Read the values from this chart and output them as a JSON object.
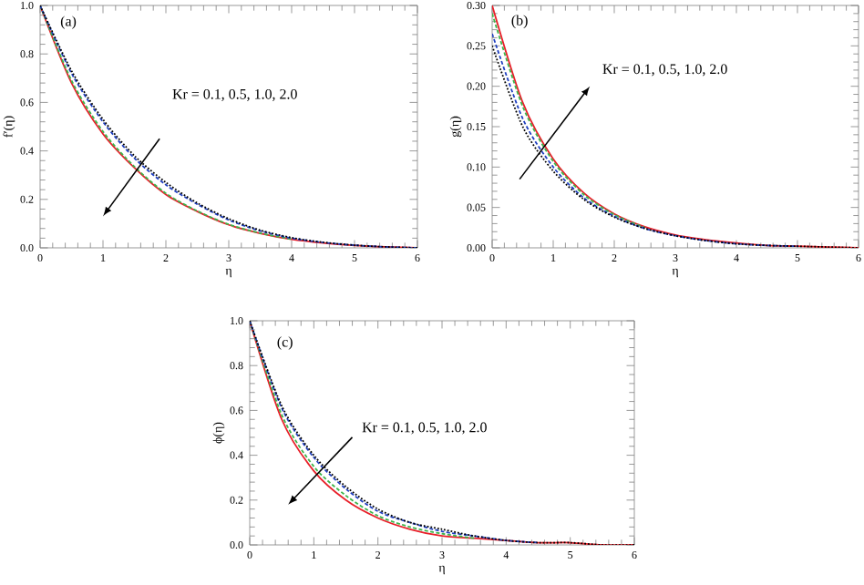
{
  "chart_data": [
    {
      "type": "line",
      "xlabel": "η",
      "ylabel": "f′(η)",
      "annotations": [
        "(a)",
        "Kr = 0.1, 0.5, 1.0, 2.0"
      ],
      "x": [
        0,
        0.5,
        1,
        1.5,
        2,
        2.5,
        3,
        3.5,
        4,
        4.5,
        5,
        5.5,
        6
      ],
      "xlim": [
        0,
        6
      ],
      "ylim": [
        0,
        1
      ],
      "xticks": [
        0,
        1,
        2,
        3,
        4,
        5,
        6
      ],
      "yticks": [
        {
          "value": 0,
          "label": "0.0"
        },
        0.2,
        0.4,
        0.6,
        0.8,
        {
          "value": 1,
          "label": "1.0"
        }
      ],
      "grid": false,
      "series": [
        {
          "color": "#000000",
          "line_style": "dotted",
          "values": [
            1,
            0.73,
            0.53,
            0.38,
            0.27,
            0.185,
            0.12,
            0.073,
            0.042,
            0.023,
            0.011,
            0.004,
            0
          ]
        },
        {
          "color": "#1f3fbf",
          "line_style": "dashed",
          "values": [
            1,
            0.72,
            0.52,
            0.37,
            0.26,
            0.18,
            0.115,
            0.07,
            0.04,
            0.022,
            0.011,
            0.004,
            0
          ]
        },
        {
          "color": "#3cb44b",
          "line_style": "dashed",
          "values": [
            1,
            0.69,
            0.48,
            0.335,
            0.225,
            0.152,
            0.097,
            0.061,
            0.036,
            null,
            null,
            null,
            null
          ]
        },
        {
          "color": "#e8202a",
          "line_style": "solid",
          "values": [
            1,
            0.68,
            0.47,
            0.33,
            0.22,
            0.15,
            0.095,
            0.06,
            0.035,
            0.02,
            0.01,
            0.004,
            0
          ]
        }
      ]
    },
    {
      "type": "line",
      "xlabel": "η",
      "ylabel": "g(η)",
      "annotations": [
        "(b)",
        "Kr = 0.1, 0.5, 1.0, 2.0"
      ],
      "x": [
        0,
        0.5,
        1,
        1.5,
        2,
        2.5,
        3,
        3.5,
        4,
        4.5,
        5,
        5.5,
        6
      ],
      "xlim": [
        0,
        6
      ],
      "ylim": [
        0,
        0.3
      ],
      "xticks": [
        0,
        1,
        2,
        3,
        4,
        5,
        6
      ],
      "yticks": [
        {
          "value": 0,
          "label": "0.00"
        },
        0.05,
        {
          "value": 0.1,
          "label": "0.10"
        },
        0.15,
        {
          "value": 0.2,
          "label": "0.20"
        },
        0.25,
        {
          "value": 0.3,
          "label": "0.30"
        }
      ],
      "grid": false,
      "series": [
        {
          "color": "#000000",
          "line_style": "dotted",
          "values": [
            0.25,
            0.15,
            0.095,
            0.06,
            0.038,
            0.024,
            0.015,
            0.009,
            0.005,
            0.003,
            0.002,
            0.001,
            0
          ]
        },
        {
          "color": "#1f3fbf",
          "line_style": "dashed",
          "values": [
            0.265,
            0.16,
            0.1,
            0.062,
            0.039,
            0.024,
            0.015,
            0.009,
            0.005,
            0.003,
            0.002,
            null,
            null
          ]
        },
        {
          "color": "#3cb44b",
          "line_style": "dashed",
          "values": [
            0.29,
            0.175,
            0.107,
            0.066,
            0.041,
            0.025,
            null,
            null,
            null,
            null,
            null,
            null,
            null
          ]
        },
        {
          "color": "#e8202a",
          "line_style": "solid",
          "values": [
            0.3,
            0.18,
            0.11,
            0.068,
            0.042,
            0.026,
            0.016,
            0.01,
            0.006,
            0.003,
            0.002,
            0.001,
            0
          ]
        }
      ]
    },
    {
      "type": "line",
      "xlabel": "η",
      "ylabel": "ϕ(η)",
      "annotations": [
        "(c)",
        "Kr = 0.1, 0.5, 1.0, 2.0"
      ],
      "x": [
        0,
        0.5,
        1,
        1.5,
        2,
        2.5,
        3,
        3.5,
        4,
        4.5,
        5,
        5.5,
        6
      ],
      "xlim": [
        0,
        6
      ],
      "ylim": [
        0,
        1
      ],
      "xticks": [
        0,
        1,
        2,
        3,
        4,
        5,
        6
      ],
      "yticks": [
        {
          "value": 0,
          "label": "0.0"
        },
        0.2,
        0.4,
        0.6,
        0.8,
        {
          "value": 1,
          "label": "1.0"
        }
      ],
      "grid": false,
      "series": [
        {
          "color": "#000000",
          "line_style": "dotted",
          "values": [
            1,
            0.62,
            0.4,
            0.26,
            0.16,
            0.1,
            0.07,
            0.04,
            0.02,
            0.01,
            0.01,
            0,
            0
          ]
        },
        {
          "color": "#1f3fbf",
          "line_style": "dashed",
          "values": [
            1,
            0.61,
            0.39,
            0.25,
            0.15,
            0.1,
            0.06,
            0.04,
            0.02,
            0.01,
            null,
            null,
            null
          ]
        },
        {
          "color": "#3cb44b",
          "line_style": "dashed",
          "values": [
            1,
            0.58,
            0.35,
            0.22,
            0.13,
            0.08,
            0.05,
            0.03,
            null,
            null,
            null,
            null,
            null
          ]
        },
        {
          "color": "#e8202a",
          "line_style": "solid",
          "values": [
            1,
            0.56,
            0.33,
            0.2,
            0.12,
            0.07,
            0.04,
            0.03,
            0.02,
            0.01,
            0.01,
            0,
            0
          ]
        }
      ]
    }
  ]
}
